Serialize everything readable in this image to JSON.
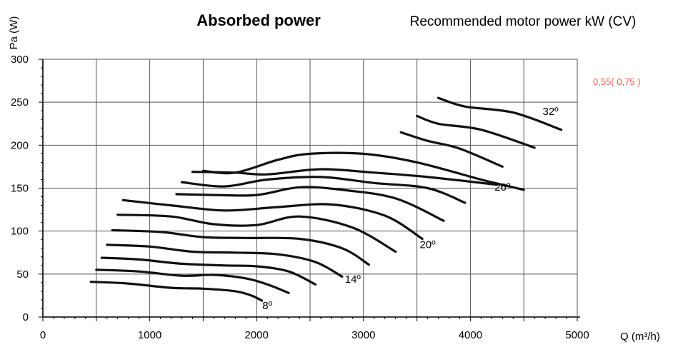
{
  "chart_data": {
    "type": "line",
    "title": "Absorbed power",
    "subtitle": "Recommended motor power kW (CV)",
    "ylabel": "Pa (W)",
    "xlabel": "Q (m³/h)",
    "xlim": [
      0,
      5000
    ],
    "ylim": [
      0,
      300
    ],
    "xticks": [
      0,
      1000,
      2000,
      3000,
      4000,
      5000
    ],
    "yticks": [
      0,
      50,
      100,
      150,
      200,
      250,
      300
    ],
    "grid": true,
    "motor_power_note": "0,55( 0,75 )",
    "motor_power_color": "#ff5a4a",
    "series": [
      {
        "name": "8º",
        "label": "8º",
        "x": [
          450,
          800,
          1200,
          1500,
          1800,
          1950,
          2050
        ],
        "y": [
          41,
          39,
          34,
          33,
          30,
          25,
          19
        ]
      },
      {
        "name": "",
        "label": "",
        "x": [
          500,
          900,
          1300,
          1600,
          1900,
          2100,
          2300
        ],
        "y": [
          55,
          53,
          48,
          49,
          45,
          38,
          28
        ]
      },
      {
        "name": "",
        "label": "",
        "x": [
          550,
          900,
          1300,
          1700,
          2000,
          2300,
          2550
        ],
        "y": [
          69,
          67,
          62,
          60,
          59,
          53,
          38
        ]
      },
      {
        "name": "14º",
        "label": "14º",
        "x": [
          600,
          1000,
          1400,
          1800,
          2200,
          2550,
          2800
        ],
        "y": [
          84,
          82,
          76,
          75,
          73,
          64,
          47
        ]
      },
      {
        "name": "",
        "label": "",
        "x": [
          650,
          1100,
          1500,
          1900,
          2400,
          2800,
          3050
        ],
        "y": [
          101,
          99,
          93,
          92,
          91,
          80,
          61
        ]
      },
      {
        "name": "",
        "label": "",
        "x": [
          700,
          1200,
          1600,
          2000,
          2400,
          2900,
          3300
        ],
        "y": [
          119,
          117,
          108,
          107,
          117,
          104,
          76
        ]
      },
      {
        "name": "20º",
        "label": "20º",
        "x": [
          750,
          1200,
          1700,
          2200,
          2700,
          3200,
          3550
        ],
        "y": [
          136,
          130,
          124,
          128,
          131,
          118,
          91
        ]
      },
      {
        "name": "",
        "label": "",
        "x": [
          1250,
          1600,
          2000,
          2400,
          2800,
          3300,
          3750
        ],
        "y": [
          143,
          142,
          142,
          151,
          148,
          138,
          112
        ]
      },
      {
        "name": "",
        "label": "",
        "x": [
          1300,
          1700,
          2100,
          2600,
          3100,
          3600,
          3950
        ],
        "y": [
          157,
          152,
          160,
          163,
          156,
          150,
          133
        ]
      },
      {
        "name": "26º",
        "label": "26º",
        "x": [
          1400,
          1800,
          2100,
          2600,
          3100,
          3600,
          4250
        ],
        "y": [
          169,
          168,
          166,
          172,
          168,
          163,
          154
        ]
      },
      {
        "name": "",
        "label": "",
        "x": [
          1500,
          1800,
          2200,
          2500,
          3000,
          3500,
          4100,
          4500
        ],
        "y": [
          170,
          168,
          183,
          190,
          190,
          180,
          160,
          148
        ]
      },
      {
        "name": "",
        "label": "",
        "x": [
          3350,
          3600,
          3900,
          4300
        ],
        "y": [
          215,
          205,
          196,
          175
        ]
      },
      {
        "name": "",
        "label": "",
        "x": [
          3500,
          3700,
          4100,
          4600
        ],
        "y": [
          234,
          225,
          218,
          197
        ]
      },
      {
        "name": "32º",
        "label": "32º",
        "x": [
          3700,
          3950,
          4400,
          4850
        ],
        "y": [
          255,
          245,
          238,
          218
        ]
      }
    ],
    "curve_labels": [
      {
        "text": "8º",
        "x": 2100,
        "y": 9
      },
      {
        "text": "14º",
        "x": 2900,
        "y": 40
      },
      {
        "text": "20º",
        "x": 3600,
        "y": 80
      },
      {
        "text": "26º",
        "x": 4300,
        "y": 147
      },
      {
        "text": "32º",
        "x": 4750,
        "y": 235
      }
    ]
  }
}
